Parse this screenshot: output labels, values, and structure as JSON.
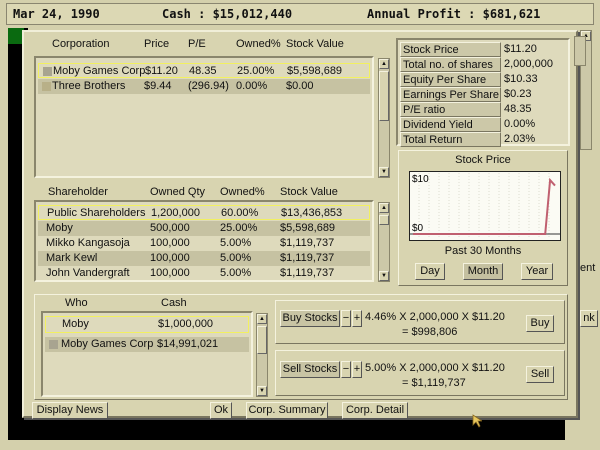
{
  "topbar": {
    "date": "Mar 24, 1990",
    "cash": "Cash : $15,012,440",
    "profit": "Annual Profit : $681,621"
  },
  "corporations": {
    "headers": [
      "Corporation",
      "Price",
      "P/E",
      "Owned%",
      "Stock Value"
    ],
    "rows": [
      [
        "Moby Games Corp",
        "$11.20",
        "48.35",
        "25.00%",
        "$5,598,689"
      ],
      [
        "Three Brothers",
        "$9.44",
        "(296.94)",
        "0.00%",
        "$0.00"
      ]
    ]
  },
  "stats": [
    [
      "Stock Price",
      "$11.20"
    ],
    [
      "Total no. of shares",
      "2,000,000"
    ],
    [
      "Equity Per Share",
      "$10.33"
    ],
    [
      "Earnings Per Share",
      "$0.23"
    ],
    [
      "P/E ratio",
      "48.35"
    ],
    [
      "Dividend Yield",
      "0.00%"
    ],
    [
      "Total Return",
      "2.03%"
    ]
  ],
  "chart_data": {
    "type": "line",
    "title": "Stock Price",
    "xlabel": "Past 30 Months",
    "ytick_labels": [
      "$10",
      "$0"
    ],
    "ylim": [
      0,
      10
    ],
    "x": [
      1,
      2,
      3,
      4,
      5,
      6,
      7,
      8,
      9,
      10,
      11,
      12,
      13,
      14,
      15,
      16,
      17,
      18,
      19,
      20,
      21,
      22,
      23,
      24,
      25,
      26,
      27,
      28,
      29,
      30
    ],
    "values": [
      0,
      0,
      0,
      0,
      0,
      0,
      0,
      0,
      0,
      0,
      0,
      0,
      0,
      0,
      0,
      0,
      0,
      0,
      0,
      0,
      0,
      0,
      0,
      0,
      0,
      0,
      0,
      0,
      9.8,
      8.8
    ],
    "line_color": "#c06070",
    "grid": true
  },
  "chart_buttons": {
    "day": "Day",
    "month": "Month",
    "year": "Year"
  },
  "shareholders": {
    "headers": [
      "Shareholder",
      "Owned Qty",
      "Owned%",
      "Stock Value"
    ],
    "rows": [
      [
        "Public Shareholders",
        "1,200,000",
        "60.00%",
        "$13,436,853"
      ],
      [
        "Moby",
        "500,000",
        "25.00%",
        "$5,598,689"
      ],
      [
        "Mikko Kangasoja",
        "100,000",
        "5.00%",
        "$1,119,737"
      ],
      [
        "Mark Kewl",
        "100,000",
        "5.00%",
        "$1,119,737"
      ],
      [
        "John Vandergraft",
        "100,000",
        "5.00%",
        "$1,119,737"
      ]
    ]
  },
  "who": {
    "headers": [
      "Who",
      "Cash"
    ],
    "rows": [
      [
        "Moby",
        "$1,000,000"
      ],
      [
        "Moby Games Corp",
        "$14,991,021"
      ]
    ]
  },
  "buy": {
    "label": "Buy Stocks",
    "formula": "4.46% X 2,000,000 X $11.20",
    "result": "= $998,806",
    "button": "Buy"
  },
  "sell": {
    "label": "Sell Stocks",
    "formula": "5.00% X 2,000,000 X $11.20",
    "result": "= $1,119,737",
    "button": "Sell"
  },
  "stepper": {
    "minus": "−",
    "plus": "+"
  },
  "buttons": {
    "news": "Display News",
    "ok": "Ok",
    "summary": "Corp. Summary",
    "detail": "Corp. Detail"
  },
  "background": {
    "partial_label_1": "ent",
    "partial_label_2": "nk"
  }
}
